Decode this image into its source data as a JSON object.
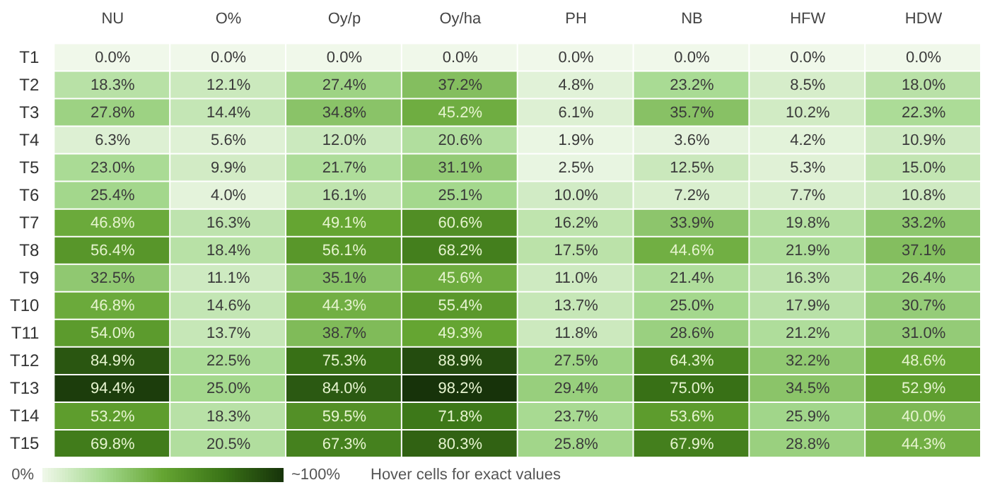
{
  "chart_data": {
    "type": "heatmap",
    "categories": [
      "NU",
      "O%",
      "Oy/p",
      "Oy/ha",
      "PH",
      "NB",
      "HFW",
      "HDW"
    ],
    "y_categories": [
      "T1",
      "T2",
      "T3",
      "T4",
      "T5",
      "T6",
      "T7",
      "T8",
      "T9",
      "T10",
      "T11",
      "T12",
      "T13",
      "T14",
      "T15"
    ],
    "cells": [
      [
        0.0,
        0.0,
        0.0,
        0.0,
        0.0,
        0.0,
        0.0,
        0.0
      ],
      [
        18.3,
        12.1,
        27.4,
        37.2,
        4.8,
        23.2,
        8.5,
        18.0
      ],
      [
        27.8,
        14.4,
        34.8,
        45.2,
        6.1,
        35.7,
        10.2,
        22.3
      ],
      [
        6.3,
        5.6,
        12.0,
        20.6,
        1.9,
        3.6,
        4.2,
        10.9
      ],
      [
        23.0,
        9.9,
        21.7,
        31.1,
        2.5,
        12.5,
        5.3,
        15.0
      ],
      [
        25.4,
        4.0,
        16.1,
        25.1,
        10.0,
        7.2,
        7.7,
        10.8
      ],
      [
        46.8,
        16.3,
        49.1,
        60.6,
        16.2,
        33.9,
        19.8,
        33.2
      ],
      [
        56.4,
        18.4,
        56.1,
        68.2,
        17.5,
        44.6,
        21.9,
        37.1
      ],
      [
        32.5,
        11.1,
        35.1,
        45.6,
        11.0,
        21.4,
        16.3,
        26.4
      ],
      [
        46.8,
        14.6,
        44.3,
        55.4,
        13.7,
        25.0,
        17.9,
        30.7
      ],
      [
        54.0,
        13.7,
        38.7,
        49.3,
        11.8,
        28.6,
        21.2,
        31.0
      ],
      [
        84.9,
        22.5,
        75.3,
        88.9,
        27.5,
        64.3,
        32.2,
        48.6
      ],
      [
        94.4,
        25.0,
        84.0,
        98.2,
        29.4,
        75.0,
        34.5,
        52.9
      ],
      [
        53.2,
        18.3,
        59.5,
        71.8,
        23.7,
        53.6,
        25.9,
        40.0
      ],
      [
        69.8,
        20.5,
        67.3,
        80.3,
        25.8,
        67.9,
        28.8,
        44.3
      ]
    ],
    "cell_labels": [
      [
        "0.0%",
        "0.0%",
        "0.0%",
        "0.0%",
        "0.0%",
        "0.0%",
        "0.0%",
        "0.0%"
      ],
      [
        "18.3%",
        "12.1%",
        "27.4%",
        "37.2%",
        "4.8%",
        "23.2%",
        "8.5%",
        "18.0%"
      ],
      [
        "27.8%",
        "14.4%",
        "34.8%",
        "45.2%",
        "6.1%",
        "35.7%",
        "10.2%",
        "22.3%"
      ],
      [
        "6.3%",
        "5.6%",
        "12.0%",
        "20.6%",
        "1.9%",
        "3.6%",
        "4.2%",
        "10.9%"
      ],
      [
        "23.0%",
        "9.9%",
        "21.7%",
        "31.1%",
        "2.5%",
        "12.5%",
        "5.3%",
        "15.0%"
      ],
      [
        "25.4%",
        "4.0%",
        "16.1%",
        "25.1%",
        "10.0%",
        "7.2%",
        "7.7%",
        "10.8%"
      ],
      [
        "46.8%",
        "16.3%",
        "49.1%",
        "60.6%",
        "16.2%",
        "33.9%",
        "19.8%",
        "33.2%"
      ],
      [
        "56.4%",
        "18.4%",
        "56.1%",
        "68.2%",
        "17.5%",
        "44.6%",
        "21.9%",
        "37.1%"
      ],
      [
        "32.5%",
        "11.1%",
        "35.1%",
        "45.6%",
        "11.0%",
        "21.4%",
        "16.3%",
        "26.4%"
      ],
      [
        "46.8%",
        "14.6%",
        "44.3%",
        "55.4%",
        "13.7%",
        "25.0%",
        "17.9%",
        "30.7%"
      ],
      [
        "54.0%",
        "13.7%",
        "38.7%",
        "49.3%",
        "11.8%",
        "28.6%",
        "21.2%",
        "31.0%"
      ],
      [
        "84.9%",
        "22.5%",
        "75.3%",
        "88.9%",
        "27.5%",
        "64.3%",
        "32.2%",
        "48.6%"
      ],
      [
        "94.4%",
        "25.0%",
        "84.0%",
        "98.2%",
        "29.4%",
        "75.0%",
        "34.5%",
        "52.9%"
      ],
      [
        "53.2%",
        "18.3%",
        "59.5%",
        "71.8%",
        "23.7%",
        "53.6%",
        "25.9%",
        "40.0%"
      ],
      [
        "69.8%",
        "20.5%",
        "67.3%",
        "80.3%",
        "25.8%",
        "67.9%",
        "28.8%",
        "44.3%"
      ]
    ],
    "annotations": [
      "0%",
      "~100%",
      "Hover cells for exact values"
    ]
  }
}
